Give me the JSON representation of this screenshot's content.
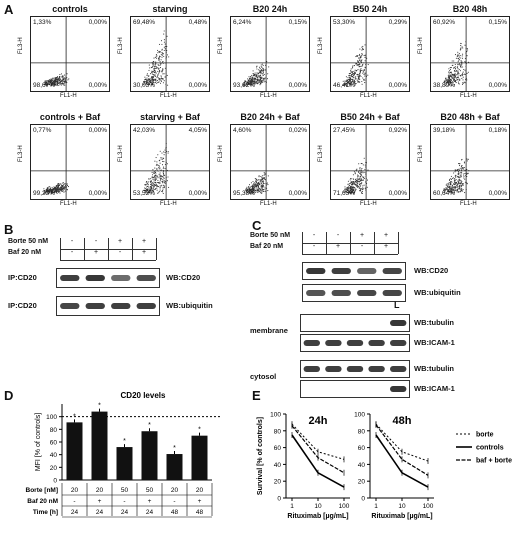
{
  "panels": {
    "A": "A",
    "B": "B",
    "C": "C",
    "D": "D",
    "E": "E"
  },
  "flow": {
    "xlabel": "FL1-H",
    "ylabel": "FL3-H",
    "plots": [
      {
        "title": "controls",
        "tl": "1,33%",
        "tr": "0,00%",
        "bl": "98,67%",
        "br": "0,00%",
        "spread": 0.15
      },
      {
        "title": "starving",
        "tl": "69,48%",
        "tr": "0,48%",
        "bl": "30,03%",
        "br": "0,00%",
        "spread": 0.85
      },
      {
        "title": "B20 24h",
        "tl": "6,24%",
        "tr": "0,15%",
        "bl": "93,62%",
        "br": "0,00%",
        "spread": 0.35
      },
      {
        "title": "B50 24h",
        "tl": "53,30%",
        "tr": "0,29%",
        "bl": "46,41%",
        "br": "0,00%",
        "spread": 0.7
      },
      {
        "title": "B20 48h",
        "tl": "60,92%",
        "tr": "0,15%",
        "bl": "38,89%",
        "br": "0,00%",
        "spread": 0.75
      },
      {
        "title": "controls + Baf",
        "tl": "0,77%",
        "tr": "0,00%",
        "bl": "99,23%",
        "br": "0,00%",
        "spread": 0.15
      },
      {
        "title": "starving + Baf",
        "tl": "42,03%",
        "tr": "4,05%",
        "bl": "53,52%",
        "br": "0,00%",
        "spread": 0.8
      },
      {
        "title": "B20 24h + Baf",
        "tl": "4,60%",
        "tr": "0,02%",
        "bl": "95,38%",
        "br": "0,00%",
        "spread": 0.3
      },
      {
        "title": "B50 24h + Baf",
        "tl": "27,45%",
        "tr": "0,92%",
        "bl": "71,63%",
        "br": "0,00%",
        "spread": 0.55
      },
      {
        "title": "B20 48h + Baf",
        "tl": "39,18%",
        "tr": "0,18%",
        "bl": "60,64%",
        "br": "0,00%",
        "spread": 0.6
      }
    ]
  },
  "B": {
    "rows": [
      {
        "label": "Borte 50 nM",
        "vals": [
          "-",
          "-",
          "+",
          "+"
        ]
      },
      {
        "label": "Baf 20 nM",
        "vals": [
          "-",
          "+",
          "-",
          "+"
        ]
      }
    ],
    "blots": [
      {
        "ip": "IP:CD20",
        "wb": "WB:CD20",
        "bands": [
          0.85,
          0.9,
          0.55,
          0.75
        ]
      },
      {
        "ip": "IP:CD20",
        "wb": "WB:ubiquitin",
        "bands": [
          0.8,
          0.85,
          0.85,
          0.85
        ]
      }
    ]
  },
  "C": {
    "rows": [
      {
        "label": "Borte 50 nM",
        "vals": [
          "-",
          "-",
          "+",
          "+"
        ]
      },
      {
        "label": "Baf 20 nM",
        "vals": [
          "-",
          "+",
          "-",
          "+"
        ]
      }
    ],
    "top_blots": [
      {
        "wb": "WB:CD20",
        "bands": [
          0.9,
          0.85,
          0.6,
          0.8
        ]
      },
      {
        "wb": "WB:ubiquitin",
        "bands": [
          0.7,
          0.75,
          0.8,
          0.8
        ]
      }
    ],
    "lane_marker": "L",
    "membrane": {
      "label": "membrane",
      "blots": [
        {
          "wb": "WB:tubulin",
          "bands": [
            0,
            0,
            0,
            0,
            0.9
          ]
        },
        {
          "wb": "WB:ICAM-1",
          "bands": [
            0.85,
            0.85,
            0.85,
            0.85,
            0.85
          ]
        }
      ]
    },
    "cytosol": {
      "label": "cytosol",
      "blots": [
        {
          "wb": "WB:tubulin",
          "bands": [
            0.85,
            0.85,
            0.85,
            0.85,
            0.85
          ]
        },
        {
          "wb": "WB:ICAM-1",
          "bands": [
            0,
            0,
            0,
            0,
            0.9
          ]
        }
      ]
    }
  },
  "chart_data": [
    {
      "type": "bar",
      "title": "CD20 levels",
      "ylabel": "MFI [% of controls]",
      "ylim": [
        0,
        120
      ],
      "yticks": [
        0,
        20,
        40,
        60,
        80,
        100
      ],
      "values": [
        91,
        108,
        52,
        77,
        41,
        70
      ],
      "reference_line": 100,
      "table": [
        {
          "label": "Borte [nM]",
          "vals": [
            "20",
            "20",
            "50",
            "50",
            "20",
            "20"
          ]
        },
        {
          "label": "Baf 20 nM",
          "vals": [
            "-",
            "+",
            "-",
            "+",
            "-",
            "+"
          ]
        },
        {
          "label": "Time [h]",
          "vals": [
            "24",
            "24",
            "24",
            "24",
            "48",
            "48"
          ]
        }
      ]
    },
    {
      "type": "line",
      "title": "24h",
      "xlabel": "Rituximab [µg/mL]",
      "ylabel": "Survival [% of controls]",
      "x": [
        1,
        10,
        100
      ],
      "xticks": [
        "1",
        "10",
        "100"
      ],
      "ylim": [
        0,
        100
      ],
      "yticks": [
        0,
        20,
        40,
        60,
        80,
        100
      ],
      "series": [
        {
          "name": "borte",
          "values": [
            88,
            55,
            46
          ]
        },
        {
          "name": "controls",
          "values": [
            75,
            30,
            13
          ]
        },
        {
          "name": "baf + borte",
          "values": [
            86,
            48,
            30
          ]
        }
      ]
    },
    {
      "type": "line",
      "title": "48h",
      "xlabel": "Rituximab [µg/mL]",
      "x": [
        1,
        10,
        100
      ],
      "xticks": [
        "1",
        "10",
        "100"
      ],
      "ylim": [
        0,
        100
      ],
      "yticks": [
        0,
        20,
        40,
        60,
        80,
        100
      ],
      "series": [
        {
          "name": "borte",
          "values": [
            88,
            55,
            44
          ]
        },
        {
          "name": "controls",
          "values": [
            75,
            30,
            13
          ]
        },
        {
          "name": "baf + borte",
          "values": [
            87,
            46,
            27
          ]
        }
      ]
    }
  ]
}
